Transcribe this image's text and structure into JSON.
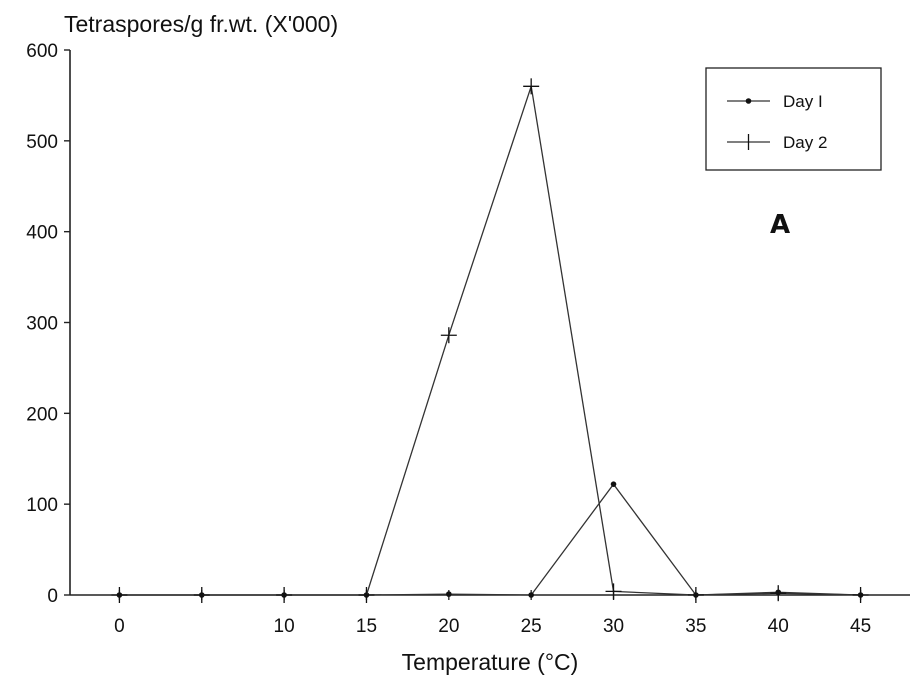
{
  "chart_data": {
    "type": "line",
    "title": "",
    "ylabel": "Tetraspores/g fr.wt. (X'000)",
    "xlabel": "Temperature (°C)",
    "panel_label": "A",
    "x": [
      0,
      5,
      10,
      15,
      20,
      25,
      30,
      35,
      40,
      45
    ],
    "x_tick_labels": [
      {
        "value": 0,
        "label": "0"
      },
      {
        "value": 10,
        "label": "10"
      },
      {
        "value": 15,
        "label": "15"
      },
      {
        "value": 20,
        "label": "20"
      },
      {
        "value": 25,
        "label": "25"
      },
      {
        "value": 30,
        "label": "30"
      },
      {
        "value": 35,
        "label": "35"
      },
      {
        "value": 40,
        "label": "40"
      },
      {
        "value": 45,
        "label": "45"
      }
    ],
    "y_ticks": [
      0,
      100,
      200,
      300,
      400,
      500,
      600
    ],
    "xlim": [
      -3,
      48
    ],
    "ylim": [
      0,
      600
    ],
    "grid": false,
    "legend_position": "top-right",
    "series": [
      {
        "name": "Day I",
        "marker": "dot",
        "values": [
          0,
          0,
          0,
          0,
          1,
          0,
          122,
          0,
          3,
          0
        ]
      },
      {
        "name": "Day 2",
        "marker": "plus",
        "values": [
          0,
          0,
          0,
          0,
          286,
          560,
          4,
          0,
          2,
          0
        ]
      }
    ],
    "colors": {
      "line": "#333333",
      "axis": "#222222",
      "text": "#111111"
    }
  }
}
